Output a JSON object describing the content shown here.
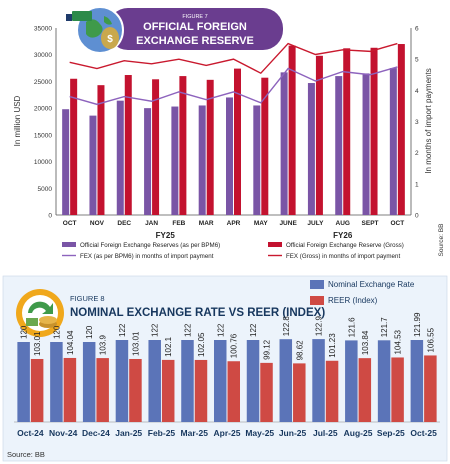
{
  "colors": {
    "purple": "#7a55a6",
    "red": "#c3122f",
    "purple_line": "#8d63bd",
    "red_line": "#c9192e",
    "blue_bar": "#5b74b8",
    "red_bar": "#cf4a44",
    "panel2_bg": "#ecf3fb",
    "title_blue": "#17375e",
    "badge_purple": "#6a3d8f"
  },
  "figure7": {
    "figure_label": "FIGURE 7",
    "title_line1": "OFFICIAL FOREIGN",
    "title_line2": "EXCHANGE RESERVE",
    "source": "Source: BB"
  },
  "figure8": {
    "figure_label": "FIGURE 8",
    "title": "NOMINAL EXCHANGE RATE VS REER (INDEX)",
    "source": "Source: BB"
  },
  "chart_data": [
    {
      "type": "bar",
      "title": "OFFICIAL FOREIGN EXCHANGE RESERVE",
      "ylabel": "In million USD",
      "y2label": "In months of import payments",
      "categories": [
        "OCT",
        "NOV",
        "DEC",
        "JAN",
        "FEB",
        "MAR",
        "APR",
        "MAY",
        "JUNE",
        "JULY",
        "AUG",
        "SEPT",
        "OCT"
      ],
      "groups": [
        {
          "label": "FY25",
          "from": 0,
          "to": 7
        },
        {
          "label": "FY26",
          "from": 8,
          "to": 12
        }
      ],
      "ylim": [
        0,
        35000
      ],
      "y_ticks": [
        0,
        5000,
        10000,
        15000,
        20000,
        25000,
        30000,
        35000
      ],
      "y2lim": [
        0,
        6
      ],
      "y2_ticks": [
        0,
        1,
        2,
        3,
        4,
        5,
        6
      ],
      "grid": false,
      "series": [
        {
          "name": "Official Foreign Exchange Reserves (as per BPM6)",
          "kind": "bar",
          "axis": "left",
          "values": [
            19800,
            18600,
            21400,
            20000,
            20300,
            20500,
            22000,
            20500,
            26700,
            24700,
            26000,
            26500,
            27500
          ]
        },
        {
          "name": "Official Foreign Exchange Reserve (Gross)",
          "kind": "bar",
          "axis": "left",
          "values": [
            25500,
            24300,
            26200,
            25400,
            26000,
            25300,
            27400,
            25700,
            31700,
            29800,
            31200,
            31300,
            32000
          ]
        },
        {
          "name": "FEX (as per BPM6) in months of import payment",
          "kind": "line",
          "axis": "right",
          "values": [
            3.8,
            3.55,
            3.8,
            3.65,
            3.95,
            3.7,
            3.95,
            3.6,
            4.7,
            4.3,
            4.6,
            4.5,
            4.75
          ]
        },
        {
          "name": "FEX (Gross) in months of import payment",
          "kind": "line",
          "axis": "right",
          "values": [
            4.9,
            4.7,
            4.95,
            4.85,
            5.0,
            4.8,
            5.0,
            4.55,
            5.5,
            5.15,
            5.3,
            5.25,
            5.5
          ]
        }
      ],
      "legend": "bottom"
    },
    {
      "type": "bar",
      "title": "NOMINAL EXCHANGE RATE VS REER (INDEX)",
      "categories": [
        "Oct-24",
        "Nov-24",
        "Dec-24",
        "Jan-25",
        "Feb-25",
        "Mar-25",
        "Apr-25",
        "May-25",
        "Jun-25",
        "Jul-25",
        "Aug-25",
        "Sep-25",
        "Oct-25"
      ],
      "series": [
        {
          "name": "Nominal Exchange Rate",
          "values": [
            120,
            120,
            120,
            122,
            122,
            122,
            122,
            122,
            122.8,
            122.9,
            121.6,
            121.7,
            121.99
          ],
          "labels": [
            "120",
            "120",
            "120",
            "122",
            "122",
            "122",
            "122",
            "122",
            "122.8",
            "122.9",
            "121.6",
            "121.7",
            "121.99"
          ]
        },
        {
          "name": "REER (Index)",
          "values": [
            103.01,
            104.04,
            103.9,
            103.01,
            102.1,
            102.05,
            100.76,
            99.12,
            98.62,
            101.23,
            103.84,
            104.53,
            106.55
          ],
          "labels": [
            "103.01",
            "104.04",
            "103.9",
            "103.01",
            "102.1",
            "102.05",
            "100.76",
            "99.12",
            "98.62",
            "101.23",
            "103.84",
            "104.53",
            "106.55"
          ]
        }
      ],
      "legend": "top-right"
    }
  ]
}
